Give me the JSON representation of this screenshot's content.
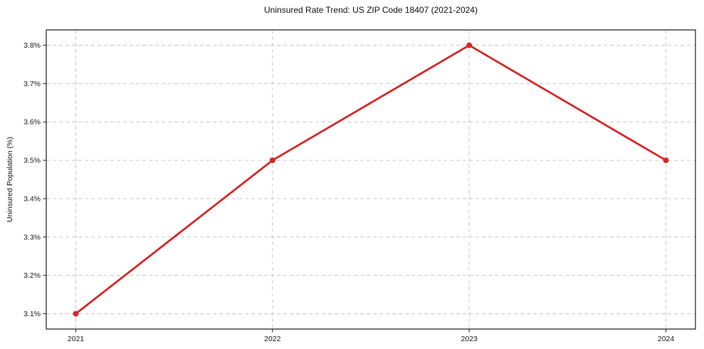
{
  "chart_data": {
    "type": "line",
    "title": "Uninsured Rate Trend: US ZIP Code 18407 (2021-2024)",
    "xlabel": "",
    "ylabel": "Uninsured Population (%)",
    "x": [
      2021,
      2022,
      2023,
      2024
    ],
    "values": [
      3.1,
      3.5,
      3.8,
      3.5
    ],
    "x_tick_labels": [
      "2021",
      "2022",
      "2023",
      "2024"
    ],
    "y_ticks": [
      3.1,
      3.2,
      3.3,
      3.4,
      3.5,
      3.6,
      3.7,
      3.8
    ],
    "y_tick_labels": [
      "3.1%",
      "3.2%",
      "3.3%",
      "3.4%",
      "3.5%",
      "3.6%",
      "3.7%",
      "3.8%"
    ],
    "xlim": [
      2020.85,
      2024.15
    ],
    "ylim": [
      3.06,
      3.84
    ],
    "grid": true,
    "grid_color": "#c9c9c9",
    "grid_dash": "5,4",
    "axis_color": "#1a1a1a",
    "line_color": "#d62728",
    "marker": "circle",
    "legend_position": "none"
  }
}
